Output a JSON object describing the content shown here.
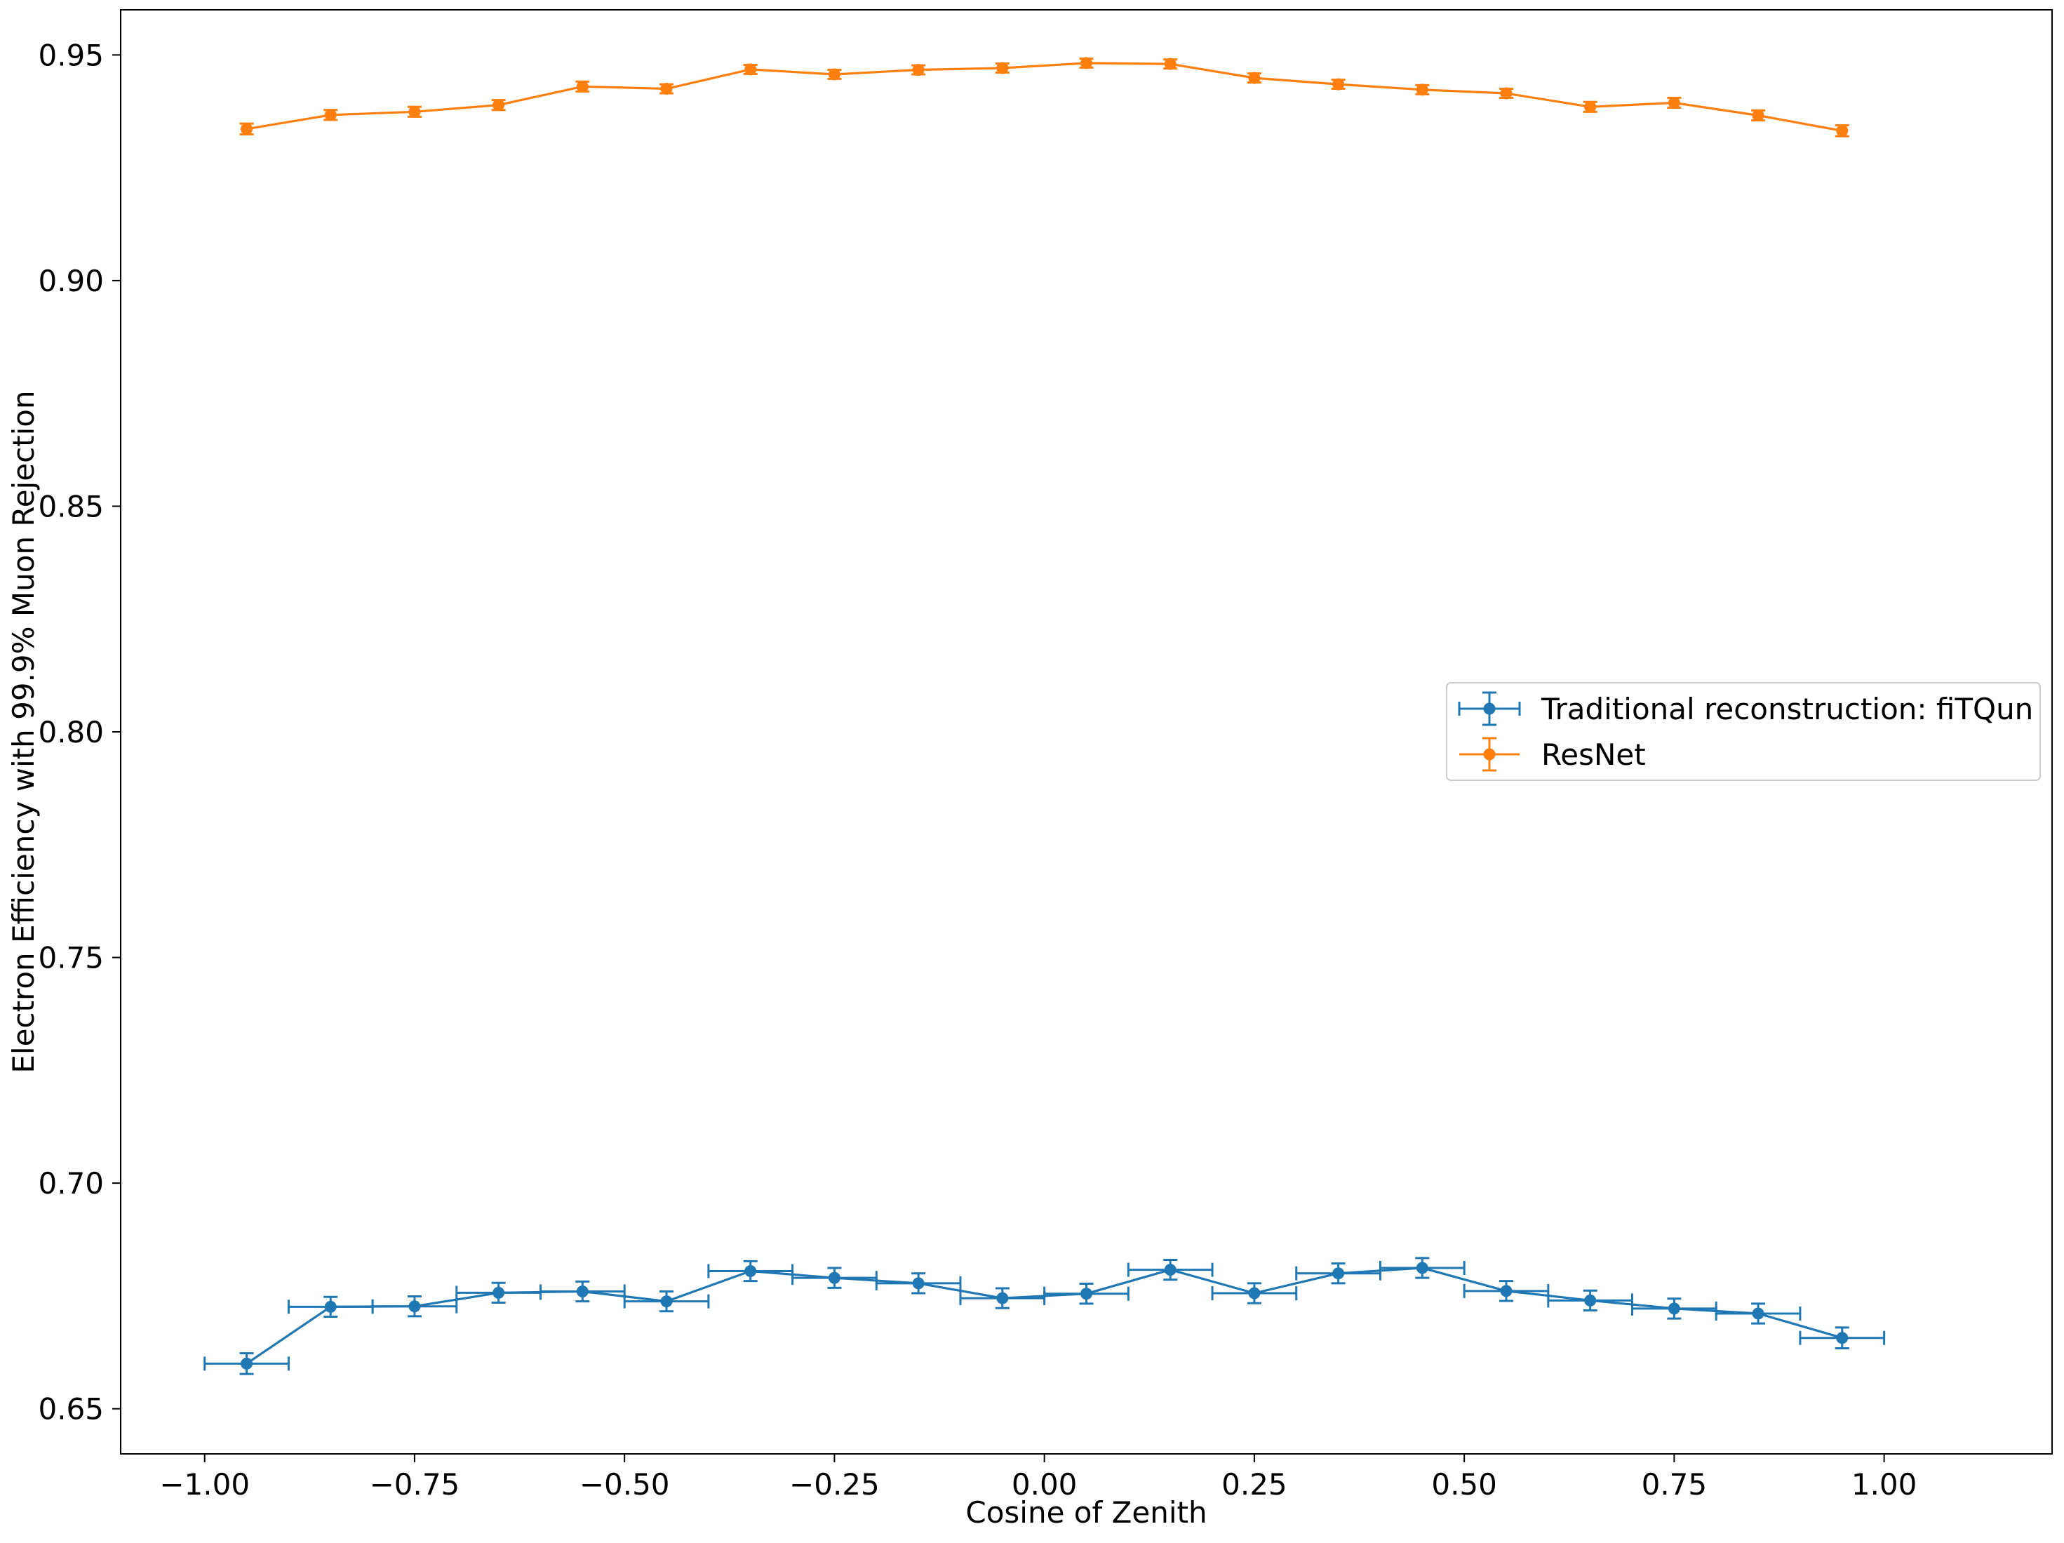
{
  "chart_data": {
    "type": "line",
    "title": "",
    "xlabel": "Cosine of Zenith",
    "ylabel": "Electron Efficiency with 99.9% Muon Rejection",
    "xlim": [
      -1.1,
      1.2
    ],
    "ylim": [
      0.64,
      0.96
    ],
    "xticks": [
      "−1.00",
      "−0.75",
      "−0.50",
      "−0.25",
      "0.00",
      "0.25",
      "0.50",
      "0.75",
      "1.00"
    ],
    "xtick_values": [
      -1.0,
      -0.75,
      -0.5,
      -0.25,
      0.0,
      0.25,
      0.5,
      0.75,
      1.0
    ],
    "yticks": [
      "0.65",
      "0.70",
      "0.75",
      "0.80",
      "0.85",
      "0.90",
      "0.95"
    ],
    "ytick_values": [
      0.65,
      0.7,
      0.75,
      0.8,
      0.85,
      0.9,
      0.95
    ],
    "grid": false,
    "legend_position": "center-right",
    "x": [
      -0.95,
      -0.85,
      -0.75,
      -0.65,
      -0.55,
      -0.45,
      -0.35,
      -0.25,
      -0.15,
      -0.05,
      0.05,
      0.15,
      0.25,
      0.35,
      0.45,
      0.55,
      0.65,
      0.75,
      0.85,
      0.95
    ],
    "xerr": 0.05,
    "series": [
      {
        "name": "Traditional reconstruction: fiTQun",
        "color": "#1f77b4",
        "values": [
          0.66,
          0.6726,
          0.6727,
          0.6757,
          0.676,
          0.6738,
          0.6805,
          0.679,
          0.6778,
          0.6745,
          0.6755,
          0.6808,
          0.6756,
          0.68,
          0.6812,
          0.6761,
          0.674,
          0.6722,
          0.6711,
          0.6657
        ],
        "yerr": [
          0.0023,
          0.0022,
          0.0022,
          0.0022,
          0.0022,
          0.0022,
          0.0022,
          0.0022,
          0.0022,
          0.0022,
          0.0022,
          0.0022,
          0.0022,
          0.0022,
          0.0022,
          0.0022,
          0.0022,
          0.0022,
          0.0022,
          0.0023
        ],
        "show_xerr": true
      },
      {
        "name": "ResNet",
        "color": "#ff7f0e",
        "values": [
          0.9336,
          0.9367,
          0.9374,
          0.9389,
          0.943,
          0.9425,
          0.9468,
          0.9457,
          0.9467,
          0.9471,
          0.9482,
          0.948,
          0.9449,
          0.9435,
          0.9423,
          0.9415,
          0.9385,
          0.9394,
          0.9366,
          0.9332
        ],
        "yerr": [
          0.0012,
          0.0011,
          0.0011,
          0.0011,
          0.0011,
          0.001,
          0.001,
          0.001,
          0.001,
          0.001,
          0.001,
          0.001,
          0.001,
          0.001,
          0.001,
          0.001,
          0.0011,
          0.0011,
          0.0011,
          0.0012
        ],
        "show_xerr": false
      }
    ]
  }
}
